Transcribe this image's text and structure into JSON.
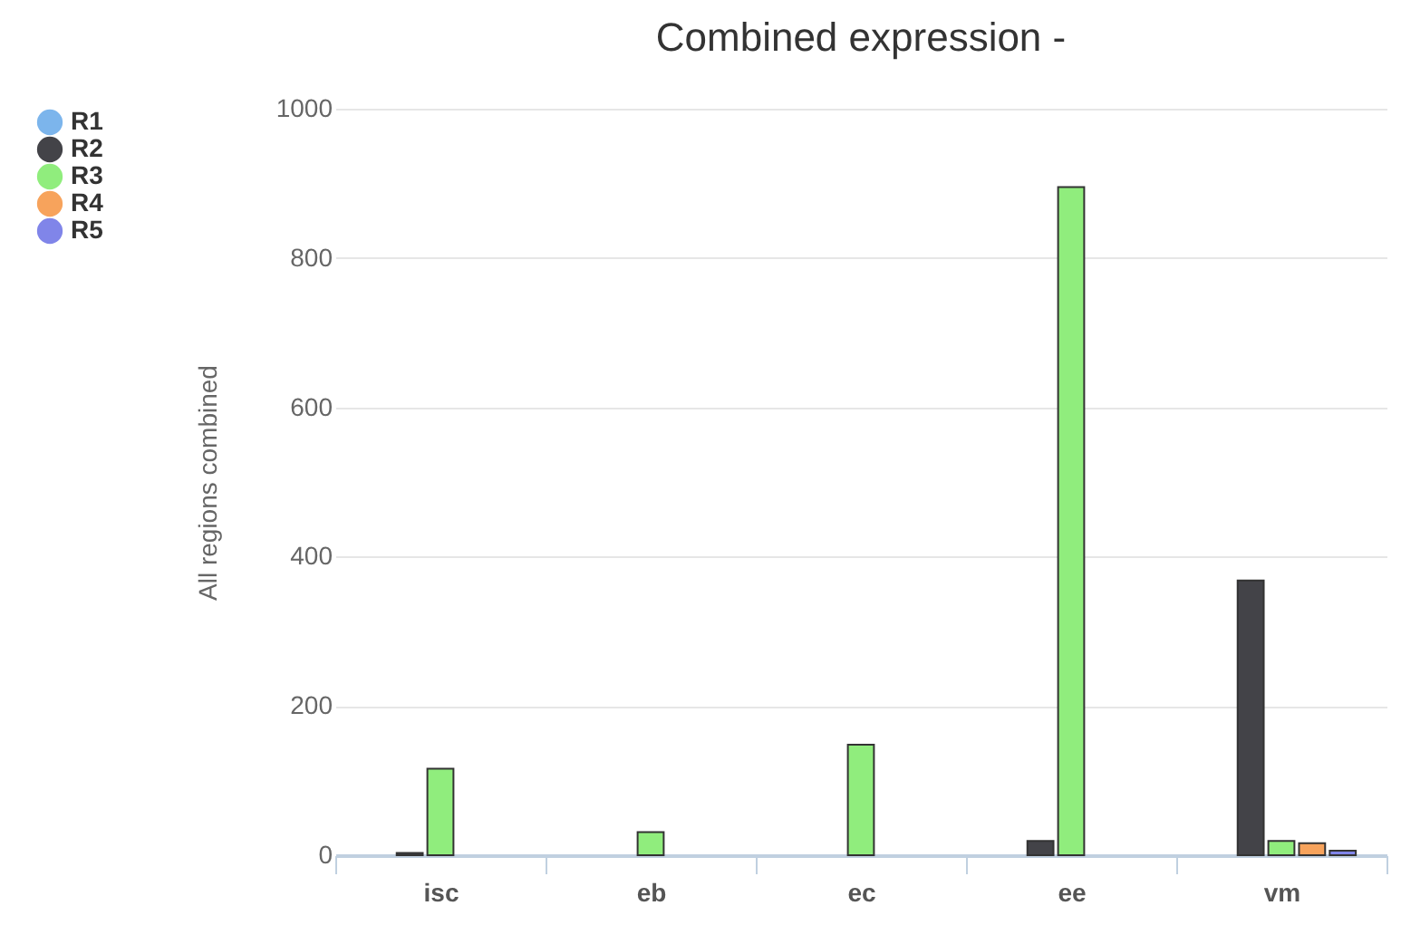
{
  "chart_data": {
    "type": "bar",
    "title": "Combined expression -",
    "ylabel": "All regions combined",
    "categories": [
      "isc",
      "eb",
      "ec",
      "ee",
      "vm"
    ],
    "series": [
      {
        "name": "R1",
        "color": "#7cb5ec",
        "values": [
          null,
          null,
          null,
          null,
          null
        ]
      },
      {
        "name": "R2",
        "color": "#434348",
        "values": [
          3,
          null,
          null,
          19,
          368
        ]
      },
      {
        "name": "R3",
        "color": "#90ed7d",
        "values": [
          116,
          31,
          148,
          895,
          19
        ]
      },
      {
        "name": "R4",
        "color": "#f7a35c",
        "values": [
          null,
          null,
          null,
          null,
          16
        ]
      },
      {
        "name": "R5",
        "color": "#8085e9",
        "values": [
          null,
          null,
          null,
          null,
          6
        ]
      }
    ],
    "ylim": [
      0,
      1000
    ],
    "yticks": [
      0,
      200,
      400,
      600,
      800,
      1000
    ],
    "grid": "y",
    "legend": "left"
  }
}
